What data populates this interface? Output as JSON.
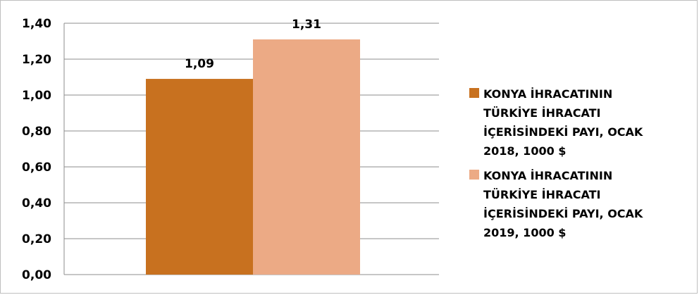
{
  "chart_data": {
    "type": "bar",
    "categories": [
      ""
    ],
    "series": [
      {
        "name": "KONYA İHRACATININ TÜRKİYE İHRACATI İÇERİSİNDEKİ PAYI, OCAK 2018, 1000 $",
        "values": [
          1.09
        ],
        "label": "1,09",
        "color": "#c8711f"
      },
      {
        "name": "KONYA İHRACATININ TÜRKİYE İHRACATI İÇERİSİNDEKİ PAYI, OCAK 2019, 1000 $",
        "values": [
          1.31
        ],
        "label": "1,31",
        "color": "#ecaa85"
      }
    ],
    "ylim": [
      0,
      1.4
    ],
    "yticks": [
      "0,00",
      "0,20",
      "0,40",
      "0,60",
      "0,80",
      "1,00",
      "1,20",
      "1,40"
    ],
    "grid": true,
    "legend_position": "right",
    "gridline_color": "#8c8c8c"
  }
}
